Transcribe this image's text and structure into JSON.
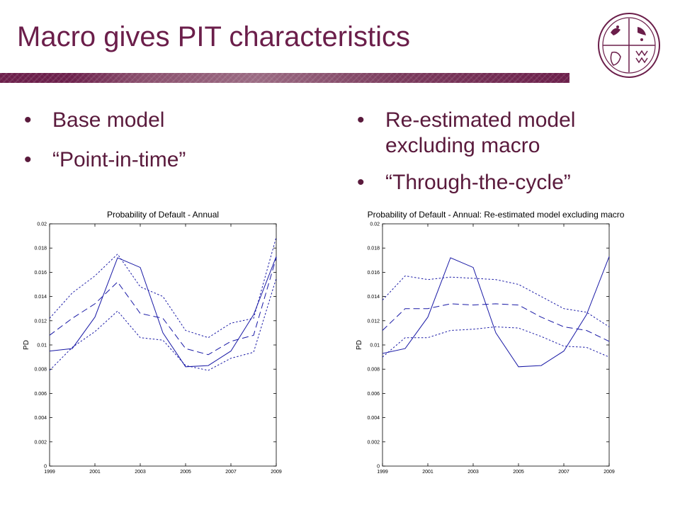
{
  "slide": {
    "title": "Macro gives PIT characteristics",
    "left_bullets": [
      "Base model",
      "“Point-in-time”"
    ],
    "right_bullets": [
      "Re-estimated model excluding macro",
      "“Through-the-cycle”"
    ],
    "logo_icon": "university-crest-icon",
    "colors": {
      "title": "#6b1e4a",
      "banner": "#6b1e4a",
      "series": "#1a1aa6"
    }
  },
  "chart_data": [
    {
      "type": "line",
      "title": "Probability of Default - Annual",
      "xlabel": "",
      "ylabel": "PD",
      "xlim": [
        1999,
        2009
      ],
      "ylim": [
        0,
        0.02
      ],
      "xticks": [
        "1999",
        "2001",
        "2003",
        "2005",
        "2007",
        "2009"
      ],
      "yticks": [
        "0",
        "0.002",
        "0.004",
        "0.006",
        "0.008",
        "0.01",
        "0.012",
        "0.014",
        "0.016",
        "0.018",
        "0.02"
      ],
      "grid": false,
      "x": [
        1999,
        2000,
        2001,
        2002,
        2003,
        2004,
        2005,
        2006,
        2007,
        2008,
        2009
      ],
      "series": [
        {
          "style": "solid",
          "values": [
            0.0095,
            0.0097,
            0.0123,
            0.0172,
            0.0164,
            0.011,
            0.0082,
            0.0083,
            0.0095,
            0.0125,
            0.0173
          ]
        },
        {
          "style": "dashed",
          "values": [
            0.0108,
            0.0122,
            0.0134,
            0.0152,
            0.0126,
            0.0122,
            0.0097,
            0.0092,
            0.0103,
            0.0108,
            0.0172
          ]
        },
        {
          "style": "dotted",
          "values": [
            0.0122,
            0.0143,
            0.0157,
            0.0175,
            0.0148,
            0.014,
            0.0112,
            0.0106,
            0.0118,
            0.0122,
            0.0189
          ]
        },
        {
          "style": "dotted",
          "values": [
            0.0079,
            0.0098,
            0.0111,
            0.0128,
            0.0106,
            0.0104,
            0.0083,
            0.0079,
            0.0089,
            0.0094,
            0.0155
          ]
        }
      ]
    },
    {
      "type": "line",
      "title": "Probability of Default - Annual: Re-estimated model excluding macro",
      "xlabel": "",
      "ylabel": "PD",
      "xlim": [
        1999,
        2009
      ],
      "ylim": [
        0,
        0.02
      ],
      "xticks": [
        "1999",
        "2001",
        "2003",
        "2005",
        "2007",
        "2009"
      ],
      "yticks": [
        "0",
        "0.002",
        "0.004",
        "0.006",
        "0.008",
        "0.01",
        "0.012",
        "0.014",
        "0.016",
        "0.018",
        "0.02"
      ],
      "grid": false,
      "x": [
        1999,
        2000,
        2001,
        2002,
        2003,
        2004,
        2005,
        2006,
        2007,
        2008,
        2009
      ],
      "series": [
        {
          "style": "solid",
          "values": [
            0.0093,
            0.0097,
            0.0123,
            0.0172,
            0.0164,
            0.011,
            0.0082,
            0.0083,
            0.0095,
            0.0125,
            0.0173
          ]
        },
        {
          "style": "dashed",
          "values": [
            0.0112,
            0.013,
            0.013,
            0.0134,
            0.0133,
            0.0134,
            0.0133,
            0.0123,
            0.0115,
            0.0112,
            0.0103
          ]
        },
        {
          "style": "dotted",
          "values": [
            0.0137,
            0.0157,
            0.0154,
            0.0156,
            0.0155,
            0.0154,
            0.015,
            0.014,
            0.013,
            0.0127,
            0.0115
          ]
        },
        {
          "style": "dotted",
          "values": [
            0.009,
            0.0106,
            0.0106,
            0.0112,
            0.0113,
            0.0115,
            0.0114,
            0.0107,
            0.0099,
            0.0098,
            0.009
          ]
        }
      ]
    }
  ]
}
